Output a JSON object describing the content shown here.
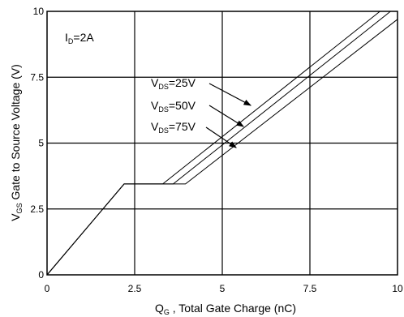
{
  "chart_data": {
    "type": "line",
    "title": "",
    "xlabel": {
      "main": "Q",
      "sub": "G",
      "rest": " , Total Gate Charge (nC)"
    },
    "ylabel": {
      "main": "V",
      "sub": "GS",
      "rest": "  Gate to Source Voltage (V)"
    },
    "xlim": [
      0,
      10
    ],
    "ylim": [
      0,
      10
    ],
    "x_ticks": [
      "0",
      "2.5",
      "5",
      "7.5",
      "10"
    ],
    "y_ticks": [
      "0",
      "2.5",
      "5",
      "7.5",
      "10"
    ],
    "grid": true,
    "annotation_condition": {
      "main": "I",
      "sub": "D",
      "rest": "=2A"
    },
    "series": [
      {
        "name": {
          "main": "V",
          "sub": "DS",
          "rest": "=25V"
        },
        "points": [
          [
            0,
            0
          ],
          [
            2.2,
            3.45
          ],
          [
            3.3,
            3.45
          ],
          [
            9.5,
            10
          ]
        ]
      },
      {
        "name": {
          "main": "V",
          "sub": "DS",
          "rest": "=50V"
        },
        "points": [
          [
            0,
            0
          ],
          [
            2.2,
            3.45
          ],
          [
            3.6,
            3.45
          ],
          [
            9.8,
            10
          ]
        ]
      },
      {
        "name": {
          "main": "V",
          "sub": "DS",
          "rest": "=75V"
        },
        "points": [
          [
            0,
            0
          ],
          [
            2.2,
            3.45
          ],
          [
            3.95,
            3.45
          ],
          [
            10,
            9.7
          ]
        ]
      }
    ],
    "colors": {
      "line": "#000000",
      "grid": "#000000"
    }
  }
}
